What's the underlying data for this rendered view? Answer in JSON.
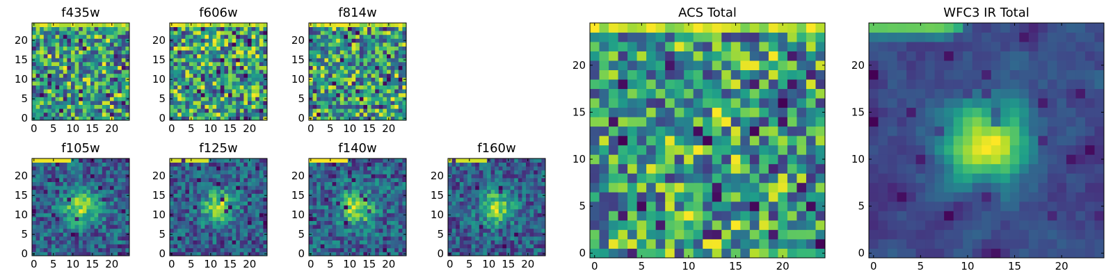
{
  "chart_data": [
    {
      "id": "f435w",
      "type": "heatmap",
      "title": "f435w",
      "nx": 25,
      "ny": 25,
      "xlim": [
        -0.5,
        24.5
      ],
      "ylim": [
        -0.5,
        24.5
      ],
      "xticks": [
        0,
        5,
        10,
        15,
        20
      ],
      "yticks": [
        0,
        5,
        10,
        15,
        20
      ],
      "pattern": "noise",
      "seed": 11,
      "colormap": "viridis"
    },
    {
      "id": "f606w",
      "type": "heatmap",
      "title": "f606w",
      "nx": 25,
      "ny": 25,
      "xlim": [
        -0.5,
        24.5
      ],
      "ylim": [
        -0.5,
        24.5
      ],
      "xticks": [
        0,
        5,
        10,
        15,
        20
      ],
      "yticks": [
        0,
        5,
        10,
        15,
        20
      ],
      "pattern": "noise",
      "seed": 23,
      "colormap": "viridis"
    },
    {
      "id": "f814w",
      "type": "heatmap",
      "title": "f814w",
      "nx": 25,
      "ny": 25,
      "xlim": [
        -0.5,
        24.5
      ],
      "ylim": [
        -0.5,
        24.5
      ],
      "xticks": [
        0,
        5,
        10,
        15,
        20
      ],
      "yticks": [
        0,
        5,
        10,
        15,
        20
      ],
      "pattern": "noise",
      "seed": 37,
      "colormap": "viridis"
    },
    {
      "id": "f105w",
      "type": "heatmap",
      "title": "f105w",
      "nx": 25,
      "ny": 25,
      "xlim": [
        -0.5,
        24.5
      ],
      "ylim": [
        -0.5,
        24.5
      ],
      "xticks": [
        0,
        5,
        10,
        15,
        20
      ],
      "yticks": [
        0,
        5,
        10,
        15,
        20
      ],
      "pattern": "source",
      "seed": 41,
      "source_center": [
        12,
        12
      ],
      "colormap": "viridis"
    },
    {
      "id": "f125w",
      "type": "heatmap",
      "title": "f125w",
      "nx": 25,
      "ny": 25,
      "xlim": [
        -0.5,
        24.5
      ],
      "ylim": [
        -0.5,
        24.5
      ],
      "xticks": [
        0,
        5,
        10,
        15,
        20
      ],
      "yticks": [
        0,
        5,
        10,
        15,
        20
      ],
      "pattern": "source",
      "seed": 53,
      "source_center": [
        12,
        12
      ],
      "colormap": "viridis"
    },
    {
      "id": "f140w",
      "type": "heatmap",
      "title": "f140w",
      "nx": 25,
      "ny": 25,
      "xlim": [
        -0.5,
        24.5
      ],
      "ylim": [
        -0.5,
        24.5
      ],
      "xticks": [
        0,
        5,
        10,
        15,
        20
      ],
      "yticks": [
        0,
        5,
        10,
        15,
        20
      ],
      "pattern": "source",
      "seed": 67,
      "source_center": [
        12,
        12
      ],
      "colormap": "viridis"
    },
    {
      "id": "f160w",
      "type": "heatmap",
      "title": "f160w",
      "nx": 25,
      "ny": 25,
      "xlim": [
        -0.5,
        24.5
      ],
      "ylim": [
        -0.5,
        24.5
      ],
      "xticks": [
        0,
        5,
        10,
        15,
        20
      ],
      "yticks": [
        0,
        5,
        10,
        15,
        20
      ],
      "pattern": "source",
      "seed": 79,
      "source_center": [
        12,
        12
      ],
      "colormap": "viridis"
    },
    {
      "id": "acs_total",
      "type": "heatmap",
      "title": "ACS Total",
      "nx": 25,
      "ny": 25,
      "xlim": [
        -0.5,
        24.5
      ],
      "ylim": [
        -0.5,
        24.5
      ],
      "xticks": [
        0,
        5,
        10,
        15,
        20
      ],
      "yticks": [
        0,
        5,
        10,
        15,
        20
      ],
      "pattern": "noise",
      "seed": 97,
      "colormap": "viridis"
    },
    {
      "id": "wfc3_ir_total",
      "type": "heatmap",
      "title": "WFC3 IR Total",
      "nx": 25,
      "ny": 25,
      "xlim": [
        -0.5,
        24.5
      ],
      "ylim": [
        -0.5,
        24.5
      ],
      "xticks": [
        0,
        5,
        10,
        15,
        20
      ],
      "yticks": [
        0,
        5,
        10,
        15,
        20
      ],
      "pattern": "source_smooth",
      "seed": 101,
      "source_center": [
        12,
        12
      ],
      "colormap": "viridis"
    }
  ]
}
